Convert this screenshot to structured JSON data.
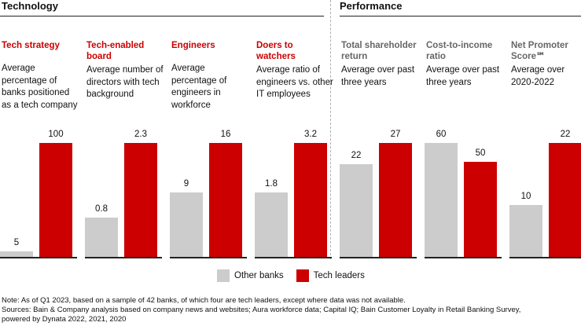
{
  "colors": {
    "other": "#cccccc",
    "leader": "#cc0000",
    "tech_title": "#cc0000",
    "perf_title": "#666666"
  },
  "sections": {
    "technology": "Technology",
    "performance": "Performance"
  },
  "chart_data": {
    "type": "bar",
    "legend": {
      "placement": "bottom-center",
      "entries": [
        "Other banks",
        "Tech leaders"
      ]
    },
    "panels": [
      {
        "group": "technology",
        "title": "Tech strategy",
        "description": "Average percentage of banks positioned as a tech company",
        "values": [
          5,
          100
        ],
        "labels": [
          "5",
          "100"
        ],
        "ymax": 100
      },
      {
        "group": "technology",
        "title": "Tech-enabled board",
        "description": "Average number of directors with tech background",
        "values": [
          0.8,
          2.3
        ],
        "labels": [
          "0.8",
          "2.3"
        ],
        "ymax": 2.3
      },
      {
        "group": "technology",
        "title": "Engineers",
        "description": "Average percentage of engineers in workforce",
        "values": [
          9,
          16
        ],
        "labels": [
          "9",
          "16"
        ],
        "ymax": 16
      },
      {
        "group": "technology",
        "title": "Doers to watchers",
        "description": "Average ratio of engineers vs. other IT employees",
        "values": [
          1.8,
          3.2
        ],
        "labels": [
          "1.8",
          "3.2"
        ],
        "ymax": 3.2
      },
      {
        "group": "performance",
        "title": "Total shareholder return",
        "description": "Average over past three years",
        "values": [
          22,
          27
        ],
        "labels": [
          "22",
          "27"
        ],
        "ymax": 27
      },
      {
        "group": "performance",
        "title": "Cost-to-income ratio",
        "description": "Average over past three years",
        "values": [
          60,
          50
        ],
        "labels": [
          "60",
          "50"
        ],
        "ymax": 60
      },
      {
        "group": "performance",
        "title": "Net Promoter Score℠",
        "description": "Average over 2020-2022",
        "values": [
          10,
          22
        ],
        "labels": [
          "10",
          "22"
        ],
        "ymax": 22
      }
    ]
  },
  "notes": {
    "line1": "Note: As of Q1 2023, based on a sample of 42 banks, of which four are tech leaders, except where data was not available.",
    "line2": "Sources: Bain & Company analysis based on company news and websites; Aura workforce data; Capital IQ; Bain Customer Loyalty in Retail Banking Survey,",
    "line3": "powered by Dynata 2022, 2021, 2020"
  }
}
